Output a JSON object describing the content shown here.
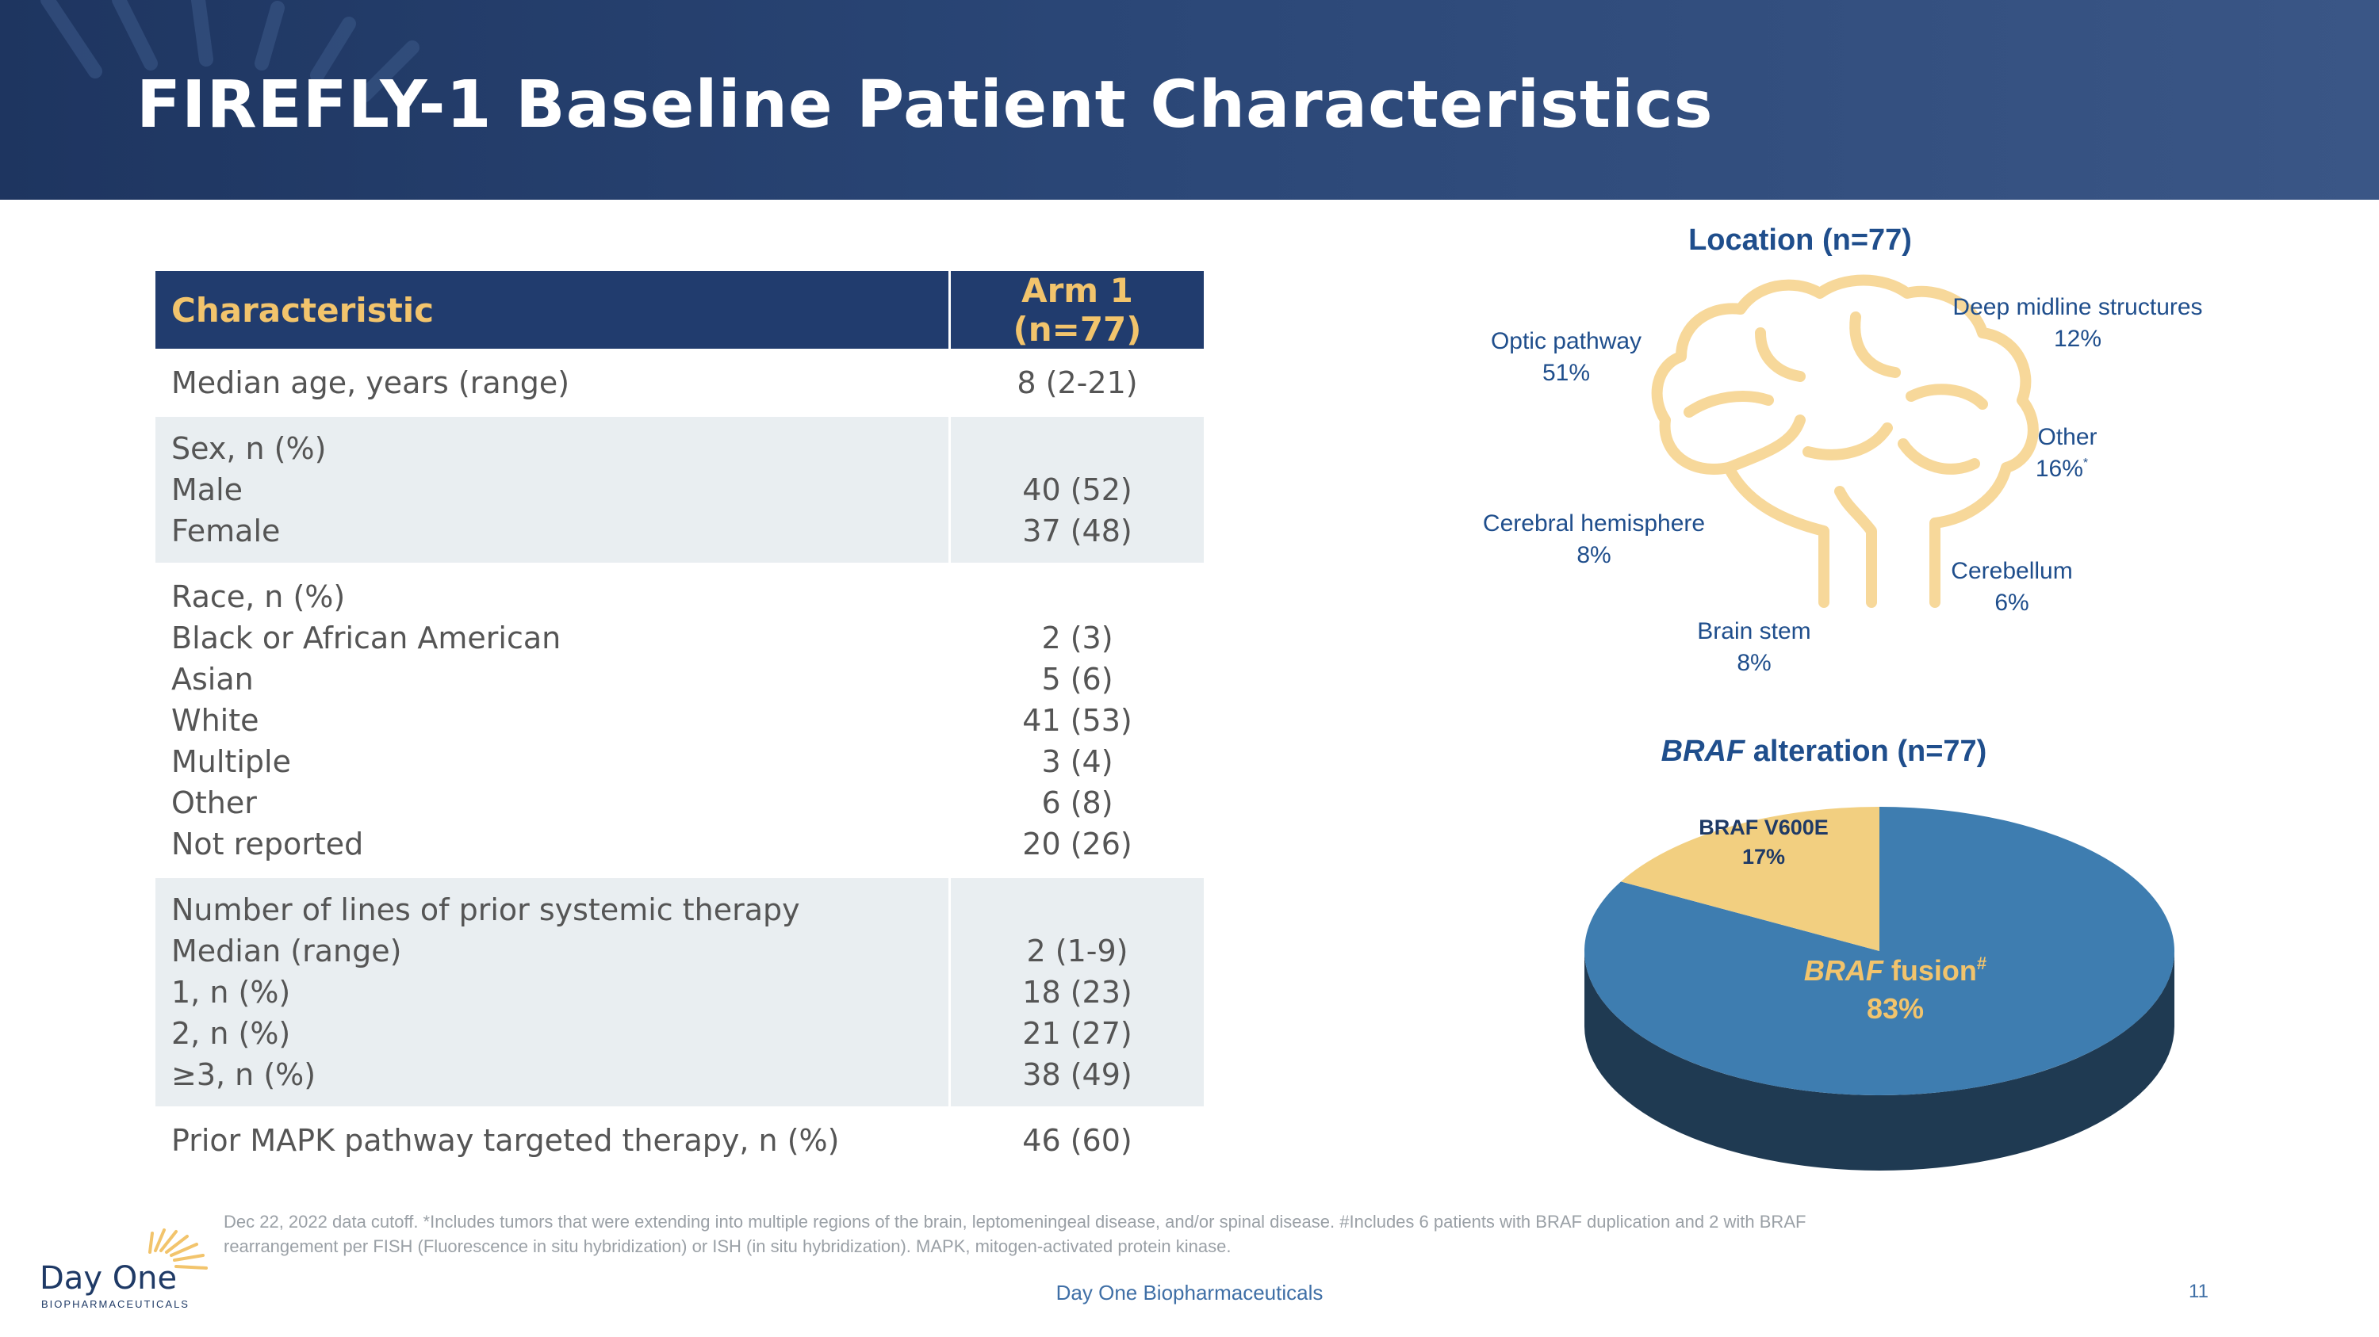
{
  "title": "FIREFLY-1 Baseline Patient Characteristics",
  "table": {
    "headers": [
      "Characteristic",
      "Arm 1 (n=77)"
    ],
    "median_age": {
      "label": "Median age, years (range)",
      "value": "8 (2-21)"
    },
    "sex": {
      "heading": "Sex, n (%)",
      "rows": [
        {
          "label": "Male",
          "value": "40 (52)"
        },
        {
          "label": "Female",
          "value": "37 (48)"
        }
      ]
    },
    "race": {
      "heading": "Race, n (%)",
      "rows": [
        {
          "label": "Black or African American",
          "value": "2 (3)"
        },
        {
          "label": "Asian",
          "value": "5 (6)"
        },
        {
          "label": "White",
          "value": "41 (53)"
        },
        {
          "label": "Multiple",
          "value": "3 (4)"
        },
        {
          "label": "Other",
          "value": "6 (8)"
        },
        {
          "label": "Not reported",
          "value": "20 (26)"
        }
      ]
    },
    "prior_therapy": {
      "heading": "Number of lines of prior systemic therapy",
      "rows": [
        {
          "label": "Median (range)",
          "value": "2 (1-9)"
        },
        {
          "label": "1, n (%)",
          "value": "18 (23)"
        },
        {
          "label": "2, n (%)",
          "value": "21 (27)"
        },
        {
          "label": "≥3, n (%)",
          "value": "38 (49)"
        }
      ]
    },
    "mapk": {
      "label": "Prior MAPK pathway targeted therapy, n (%)",
      "value": "46 (60)"
    }
  },
  "location": {
    "title": "Location (n=77)",
    "labels": [
      {
        "name": "Optic pathway",
        "pct": "51%"
      },
      {
        "name": "Deep midline structures",
        "pct": "12%"
      },
      {
        "name": "Other",
        "pct": "16%",
        "mark": "*"
      },
      {
        "name": "Cerebral hemisphere",
        "pct": "8%"
      },
      {
        "name": "Cerebellum",
        "pct": "6%"
      },
      {
        "name": "Brain stem",
        "pct": "8%"
      }
    ]
  },
  "braf": {
    "title_italic": "BRAF",
    "title_rest": " alteration (n=77)",
    "v600e_label": "BRAF V600E",
    "v600e_pct": "17%",
    "fusion_italic": "BRAF",
    "fusion_rest": " fusion",
    "fusion_mark": "#",
    "fusion_pct": "83%"
  },
  "chart_data": {
    "type": "pie",
    "title": "BRAF alteration (n=77)",
    "categories": [
      "BRAF fusion",
      "BRAF V600E"
    ],
    "values": [
      83,
      17
    ],
    "colors": [
      "#3e7db0",
      "#f2cf80"
    ]
  },
  "footnote": {
    "line1": "Dec 22, 2022 data cutoff. *Includes tumors that were extending into multiple regions of the brain, leptomeningeal disease, and/or spinal disease. #Includes 6 patients with BRAF duplication and 2 with BRAF",
    "line2": "rearrangement per FISH (Fluorescence in situ hybridization) or ISH (in situ hybridization). MAPK, mitogen-activated protein kinase."
  },
  "footer": {
    "company": "Day One Biopharmaceuticals",
    "page": "11"
  },
  "logo": {
    "name": "Day One",
    "sub": "BIOPHARMACEUTICALS"
  },
  "colors": {
    "navy": "#213c6e",
    "gold": "#f2c46c",
    "blue": "#1f4e8c",
    "pie_dark": "#1f3a52"
  }
}
